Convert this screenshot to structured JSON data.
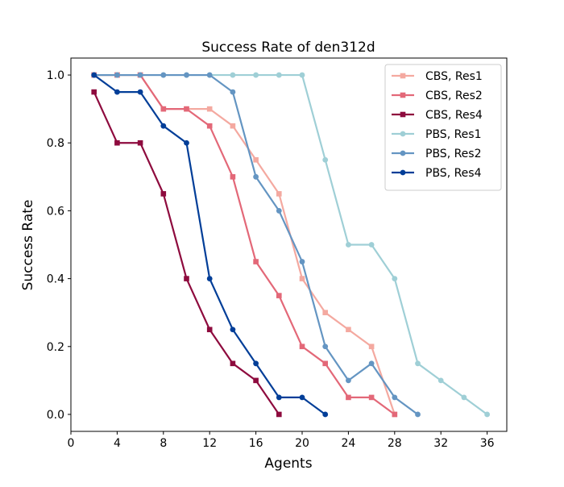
{
  "chart_data": {
    "type": "line",
    "title": "Success Rate of den312d",
    "xlabel": "Agents",
    "ylabel": "Success Rate",
    "xlim": [
      0,
      37.7
    ],
    "ylim": [
      -0.05,
      1.05
    ],
    "xticks": [
      0,
      4,
      8,
      12,
      16,
      20,
      24,
      28,
      32,
      36
    ],
    "yticks": [
      0.0,
      0.2,
      0.4,
      0.6,
      0.8,
      1.0
    ],
    "xtick_labels": [
      "0",
      "4",
      "8",
      "12",
      "16",
      "20",
      "24",
      "28",
      "32",
      "36"
    ],
    "ytick_labels": [
      "0.0",
      "0.2",
      "0.4",
      "0.6",
      "0.8",
      "1.0"
    ],
    "grid": false,
    "legend_position": "top-right",
    "series": [
      {
        "name": "CBS, Res1",
        "color": "#f4a9a0",
        "marker": "square",
        "x": [
          2,
          4,
          6,
          8,
          10,
          12,
          14,
          16,
          18,
          20,
          22,
          24,
          26,
          28
        ],
        "y": [
          1.0,
          1.0,
          1.0,
          0.9,
          0.9,
          0.9,
          0.85,
          0.75,
          0.65,
          0.4,
          0.3,
          0.25,
          0.2,
          0.0
        ]
      },
      {
        "name": "CBS, Res2",
        "color": "#e36878",
        "marker": "square",
        "x": [
          2,
          4,
          6,
          8,
          10,
          12,
          14,
          16,
          18,
          20,
          22,
          24,
          26,
          28
        ],
        "y": [
          1.0,
          1.0,
          1.0,
          0.9,
          0.9,
          0.85,
          0.7,
          0.45,
          0.35,
          0.2,
          0.15,
          0.05,
          0.05,
          0.0
        ]
      },
      {
        "name": "CBS, Res4",
        "color": "#8e0b3e",
        "marker": "square",
        "x": [
          2,
          4,
          6,
          8,
          10,
          12,
          14,
          16,
          18
        ],
        "y": [
          0.95,
          0.8,
          0.8,
          0.65,
          0.4,
          0.25,
          0.15,
          0.1,
          0.0
        ]
      },
      {
        "name": "PBS, Res1",
        "color": "#9fcfd6",
        "marker": "circle",
        "x": [
          2,
          4,
          6,
          8,
          10,
          12,
          14,
          16,
          18,
          20,
          22,
          24,
          26,
          28,
          30,
          32,
          34,
          36
        ],
        "y": [
          1.0,
          1.0,
          1.0,
          1.0,
          1.0,
          1.0,
          1.0,
          1.0,
          1.0,
          1.0,
          0.75,
          0.5,
          0.5,
          0.4,
          0.15,
          0.1,
          0.05,
          0.0
        ]
      },
      {
        "name": "PBS, Res2",
        "color": "#6495c2",
        "marker": "circle",
        "x": [
          2,
          4,
          6,
          8,
          10,
          12,
          14,
          16,
          18,
          20,
          22,
          24,
          26,
          28,
          30
        ],
        "y": [
          1.0,
          1.0,
          1.0,
          1.0,
          1.0,
          1.0,
          0.95,
          0.7,
          0.6,
          0.45,
          0.2,
          0.1,
          0.15,
          0.05,
          0.0
        ]
      },
      {
        "name": "PBS, Res4",
        "color": "#023e98",
        "marker": "circle",
        "x": [
          2,
          4,
          6,
          8,
          10,
          12,
          14,
          16,
          18,
          20,
          22
        ],
        "y": [
          1.0,
          0.95,
          0.95,
          0.85,
          0.8,
          0.4,
          0.25,
          0.15,
          0.05,
          0.05,
          0.0
        ]
      }
    ]
  }
}
